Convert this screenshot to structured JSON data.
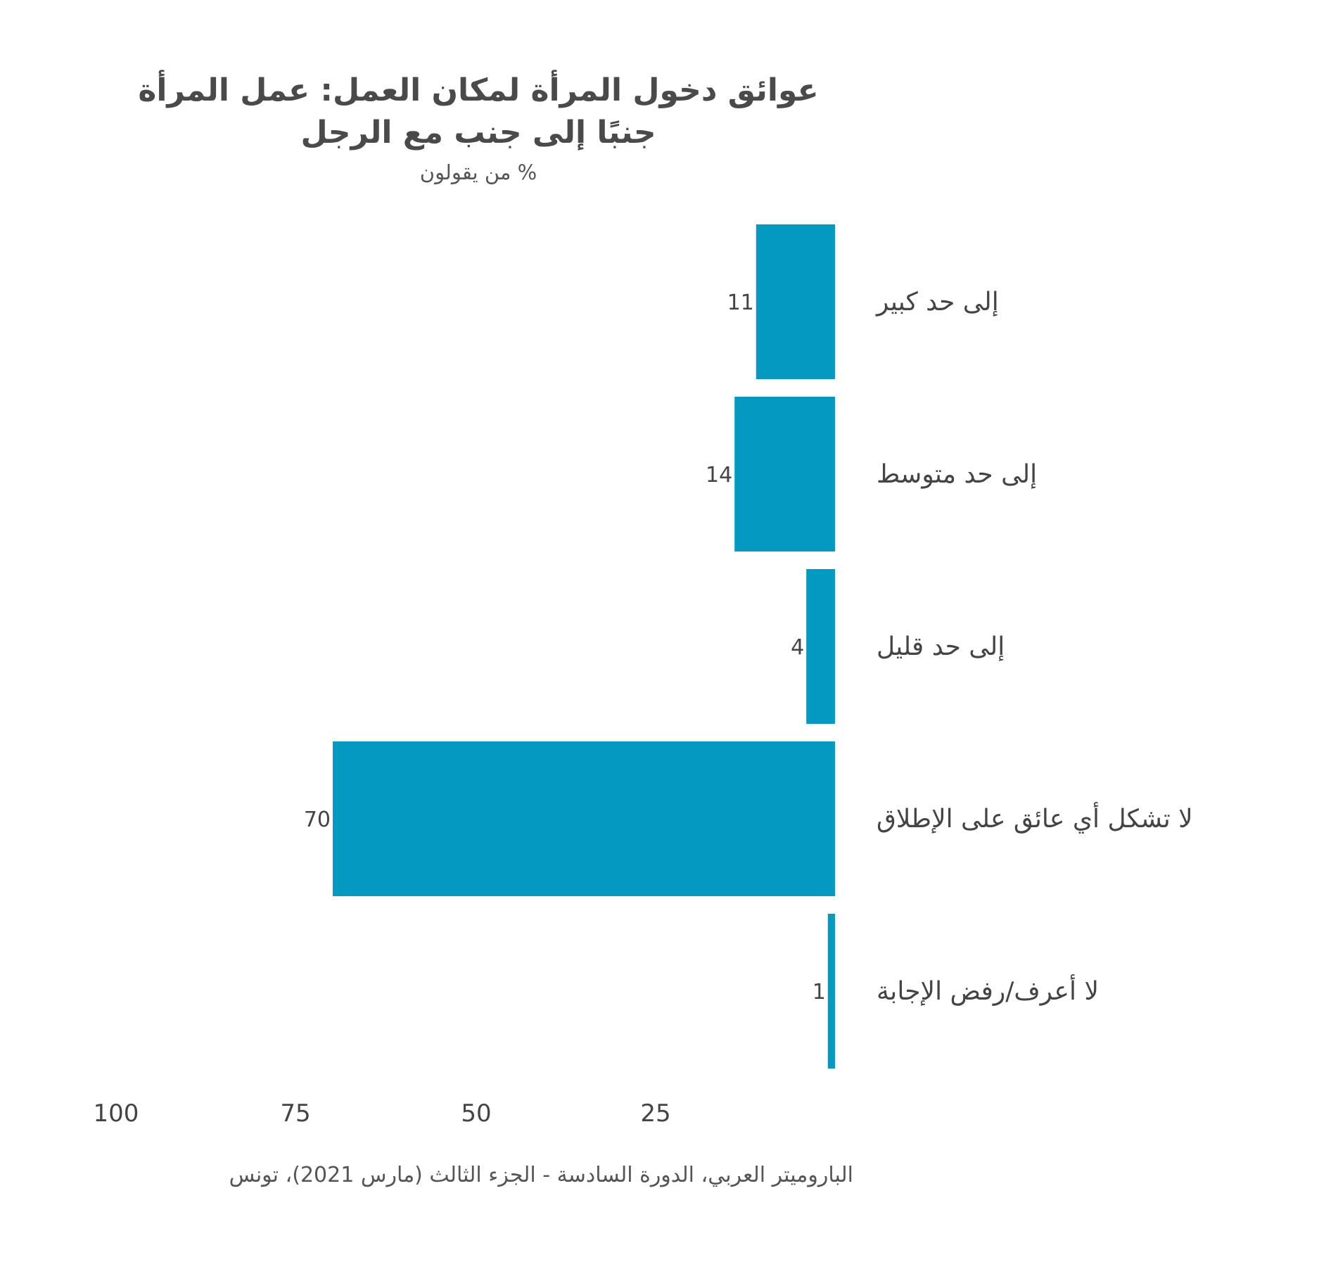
{
  "chart_data": {
    "type": "bar",
    "orientation": "horizontal",
    "title_lines": [
      "عوائق دخول المرأة لمكان العمل: عمل المرأة",
      "جنبًا إلى جنب مع الرجل"
    ],
    "subtitle": "% من يقولون",
    "categories": [
      "إلى حد كبير",
      "إلى حد متوسط",
      "إلى حد قليل",
      "لا تشكل أي عائق على الإطلاق",
      "لا أعرف/رفض الإجابة"
    ],
    "values": [
      11,
      14,
      4,
      70,
      1
    ],
    "x_ticks": [
      100,
      75,
      50,
      25
    ],
    "xlim": [
      0,
      100
    ],
    "x_direction": "right-to-left",
    "grid": false,
    "legend": "none",
    "bar_color": "#0399c1",
    "source": "الباروميتر العربي، الدورة السادسة - الجزء الثالث (مارس 2021)، تونس"
  }
}
